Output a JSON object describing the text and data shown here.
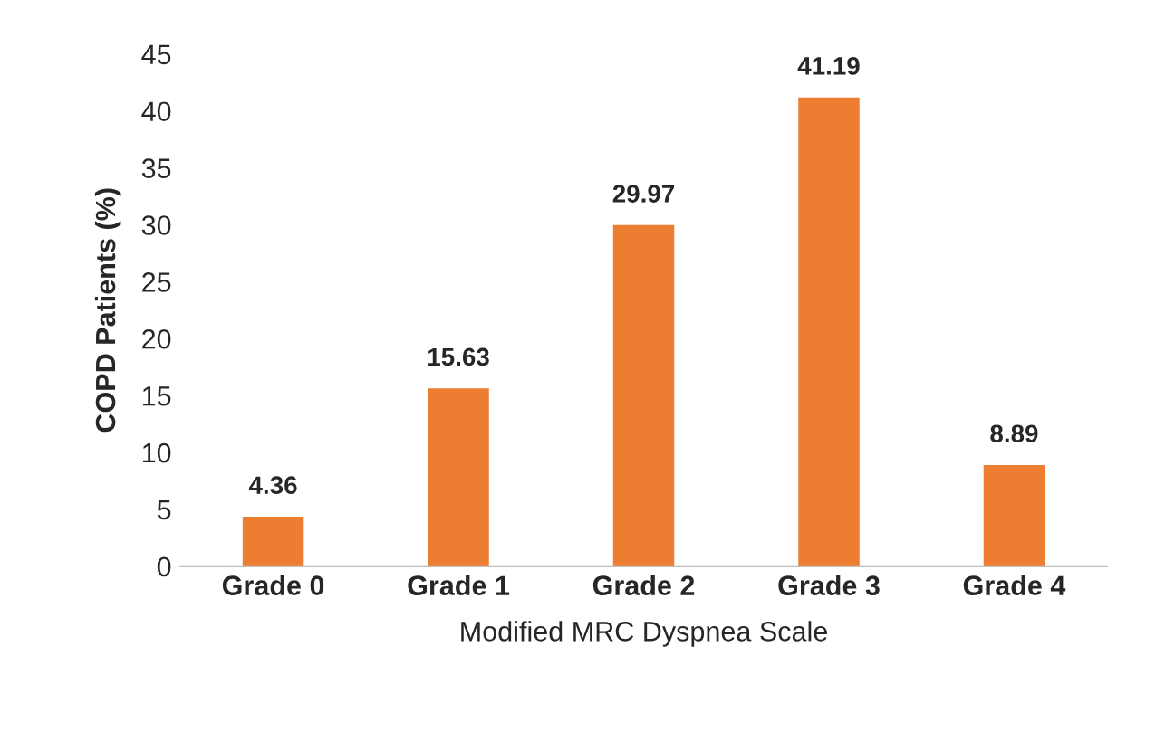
{
  "chart_data": {
    "type": "bar",
    "xlabel": "Modified MRC Dyspnea Scale",
    "ylabel": "COPD Patients (%)",
    "categories": [
      "Grade 0",
      "Grade 1",
      "Grade 2",
      "Grade 3",
      "Grade 4"
    ],
    "values": [
      4.36,
      15.63,
      29.97,
      41.19,
      8.89
    ],
    "color": "#ed7d31",
    "ylim": [
      0,
      45
    ],
    "yticks": [
      0,
      5,
      10,
      15,
      20,
      25,
      30,
      35,
      40,
      45
    ],
    "grid": false,
    "data_labels": true
  }
}
